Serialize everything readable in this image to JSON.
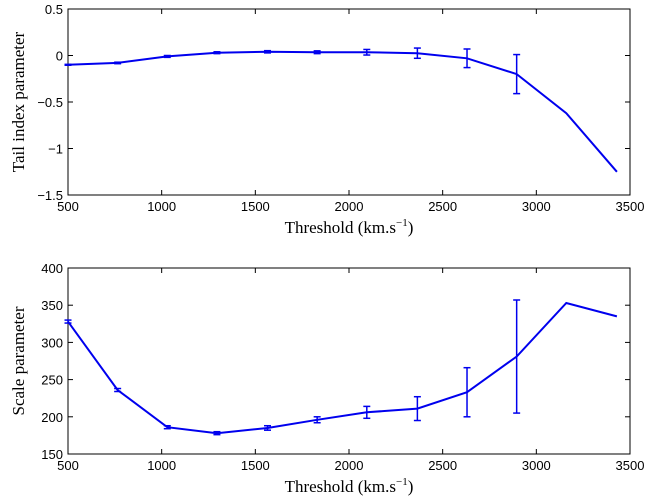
{
  "chart_data": [
    {
      "type": "line",
      "xlabel_main": "Threshold (km.s",
      "xlabel_sup": "−1",
      "xlabel_close": ")",
      "ylabel": "Tail index parameter",
      "xlim": [
        500,
        3500
      ],
      "ylim": [
        -1.5,
        0.5
      ],
      "xticks": [
        500,
        1000,
        1500,
        2000,
        2500,
        3000,
        3500
      ],
      "yticks": [
        -1.5,
        -1,
        -0.5,
        0,
        0.5
      ],
      "ytick_labels": [
        "−1.5",
        "−1",
        "−0.5",
        "0",
        "0.5"
      ],
      "color": "#0000ee",
      "x": [
        500,
        765,
        1030,
        1295,
        1565,
        1830,
        2095,
        2365,
        2630,
        2895,
        3160,
        3430
      ],
      "y": [
        -0.1,
        -0.08,
        -0.01,
        0.03,
        0.04,
        0.035,
        0.035,
        0.025,
        -0.03,
        -0.2,
        -0.62,
        -1.25
      ],
      "err": [
        0.005,
        0.008,
        0.01,
        0.01,
        0.012,
        0.015,
        0.03,
        0.055,
        0.1,
        0.21,
        0,
        0
      ]
    },
    {
      "type": "line",
      "xlabel_main": "Threshold (km.s",
      "xlabel_sup": "−1",
      "xlabel_close": ")",
      "ylabel": "Scale parameter",
      "xlim": [
        500,
        3500
      ],
      "ylim": [
        150,
        400
      ],
      "xticks": [
        500,
        1000,
        1500,
        2000,
        2500,
        3000,
        3500
      ],
      "yticks": [
        150,
        200,
        250,
        300,
        350,
        400
      ],
      "ytick_labels": [
        "150",
        "200",
        "250",
        "300",
        "350",
        "400"
      ],
      "color": "#0000ee",
      "x": [
        500,
        765,
        1030,
        1295,
        1565,
        1830,
        2095,
        2365,
        2630,
        2895,
        3160,
        3430
      ],
      "y": [
        328,
        236,
        186,
        178,
        185,
        196,
        206,
        211,
        233,
        281,
        353,
        335
      ],
      "err": [
        2,
        2,
        2,
        2,
        3,
        4,
        8,
        16,
        33,
        76,
        0,
        0
      ]
    }
  ]
}
